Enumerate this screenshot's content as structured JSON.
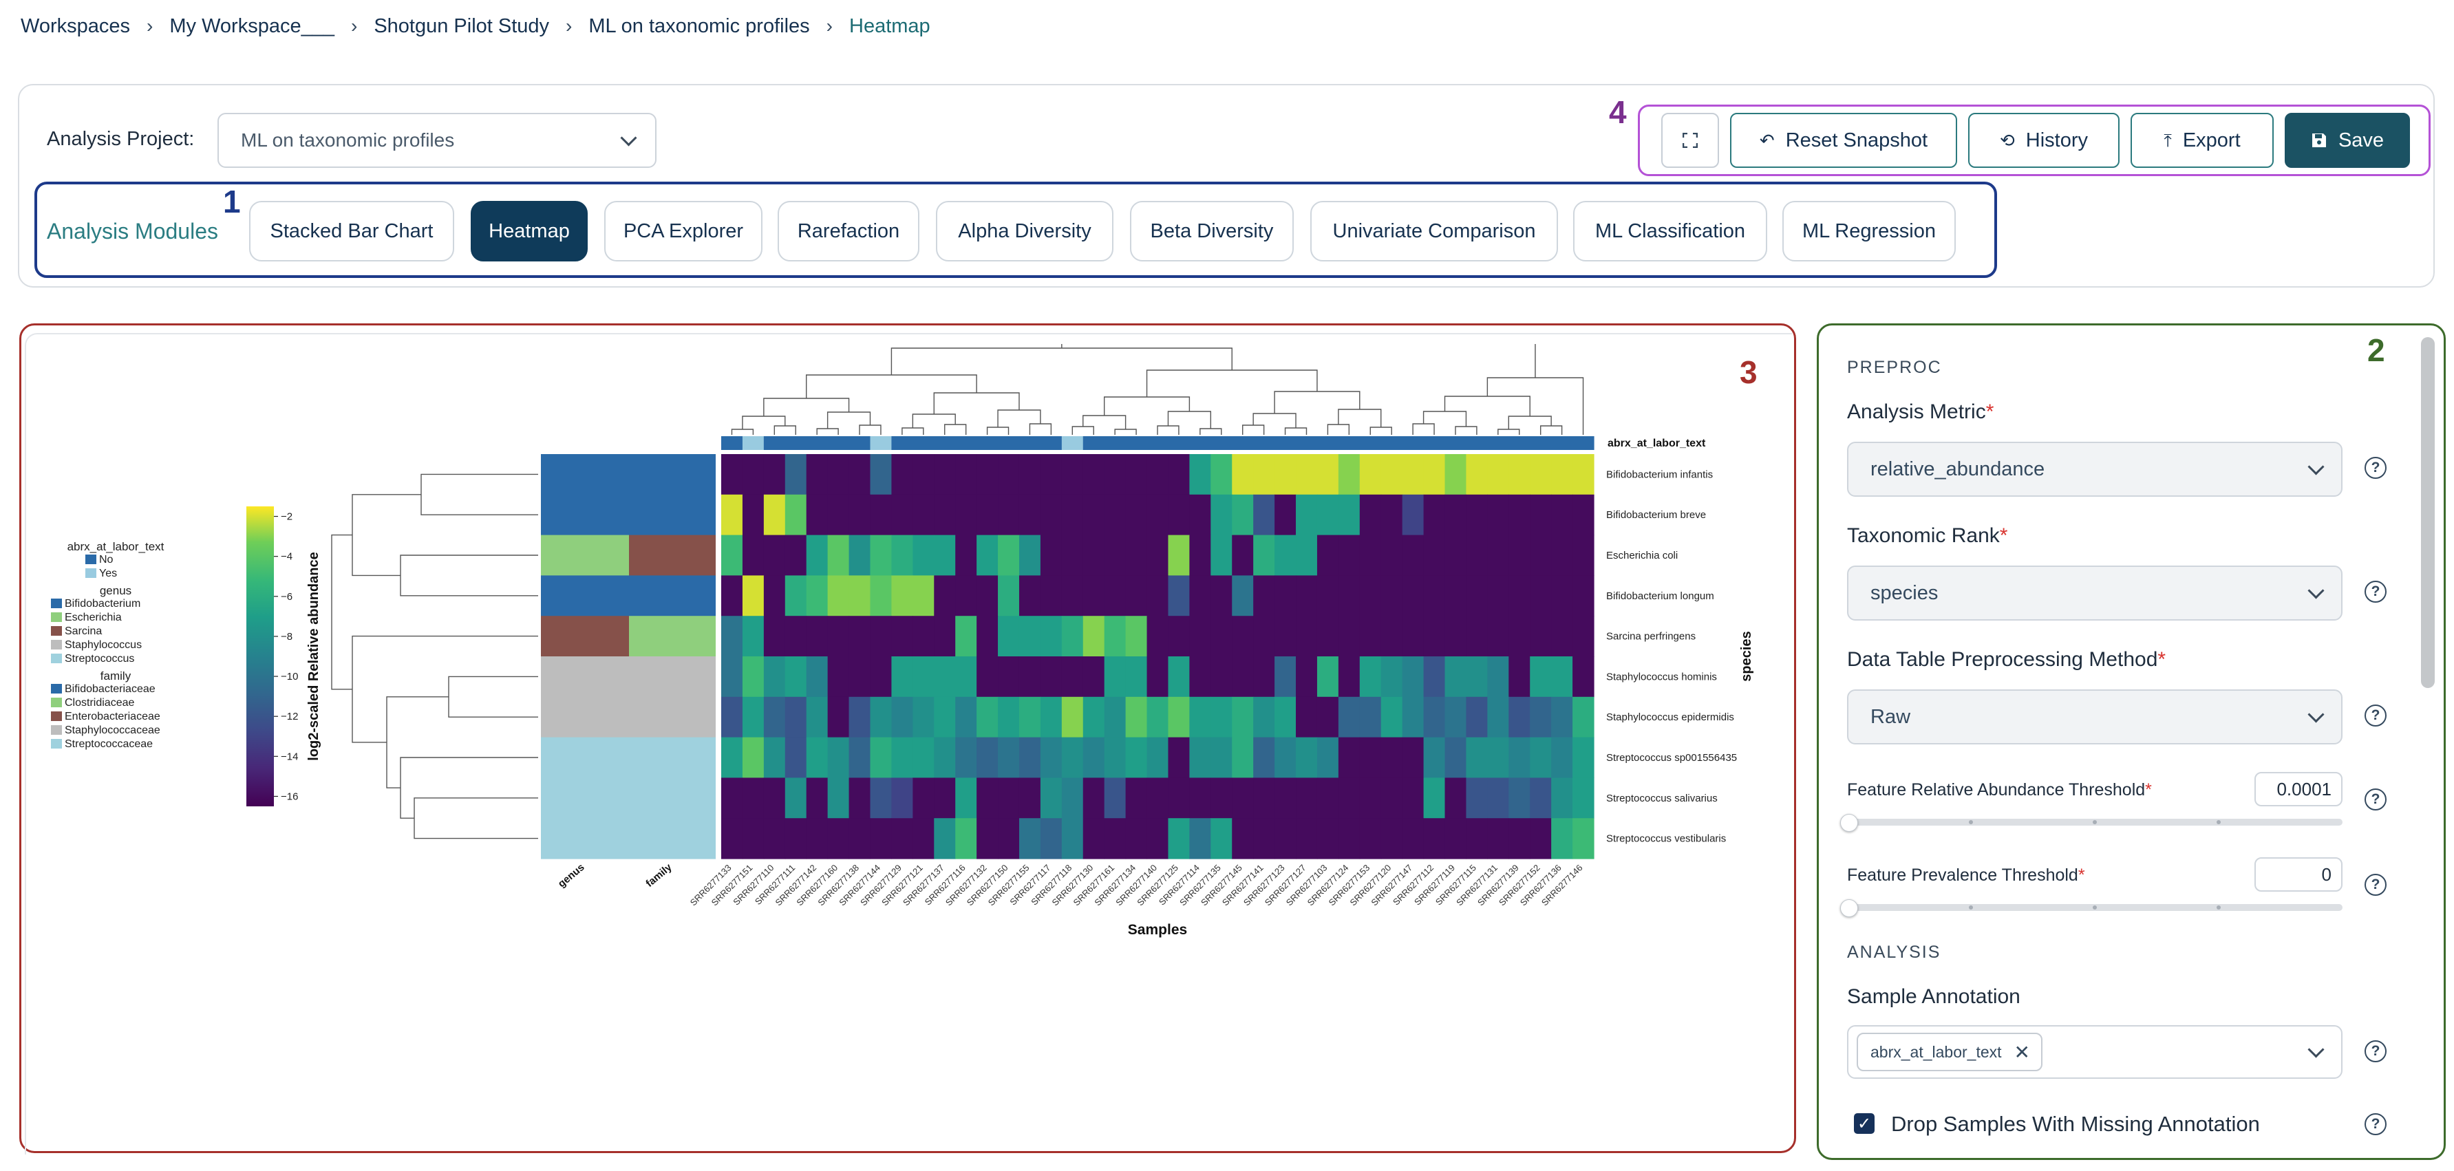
{
  "breadcrumb": [
    "Workspaces",
    "My Workspace___",
    "Shotgun Pilot Study",
    "ML on taxonomic profiles",
    "Heatmap"
  ],
  "project": {
    "label": "Analysis Project:",
    "value": "ML on taxonomic profiles"
  },
  "modules": {
    "label": "Analysis Modules",
    "items": [
      "Stacked Bar Chart",
      "Heatmap",
      "PCA Explorer",
      "Rarefaction",
      "Alpha Diversity",
      "Beta Diversity",
      "Univariate Comparison",
      "ML Classification",
      "ML Regression"
    ],
    "active": "Heatmap"
  },
  "toolbar": {
    "reset": "Reset Snapshot",
    "history": "History",
    "export": "Export",
    "save": "Save"
  },
  "annotations": {
    "modules": "1",
    "settings": "2",
    "plot": "3",
    "toolbar": "4"
  },
  "settings": {
    "preproc_title": "PREPROC",
    "metric_label": "Analysis Metric",
    "metric_value": "relative_abundance",
    "rank_label": "Taxonomic Rank",
    "rank_value": "species",
    "method_label": "Data Table Preprocessing Method",
    "method_value": "Raw",
    "rel_threshold_label": "Feature Relative Abundance Threshold",
    "rel_threshold_value": "0.0001",
    "prev_threshold_label": "Feature Prevalence Threshold",
    "prev_threshold_value": "0",
    "analysis_title": "ANALYSIS",
    "sample_annotation_label": "Sample Annotation",
    "sample_annotation_chip": "abrx_at_labor_text",
    "drop_samples_label": "Drop Samples With Missing Annotation",
    "drop_samples_checked": true
  },
  "chart_data": {
    "type": "heatmap",
    "xlabel": "Samples",
    "ylabel": "species",
    "colorbar_label": "log2-scaled Relative abundance",
    "colorbar_ticks": [
      -2,
      -4,
      -6,
      -8,
      -10,
      -12,
      -14,
      -16
    ],
    "vmin": -16.5,
    "vmax": -1.5,
    "top_annotation_label": "abrx_at_labor_text",
    "row_annotation_labels": [
      "genus",
      "family"
    ],
    "rows": [
      "Bifidobacterium infantis",
      "Bifidobacterium breve",
      "Escherichia coli",
      "Bifidobacterium longum",
      "Sarcina perfringens",
      "Staphylococcus hominis",
      "Staphylococcus epidermidis",
      "Streptococcus sp001556435",
      "Streptococcus salivarius",
      "Streptococcus vestibularis"
    ],
    "columns": [
      "SRR6277133",
      "SRR6277151",
      "SRR6277110",
      "SRR6277111",
      "SRR6277142",
      "SRR6277160",
      "SRR6277138",
      "SRR6277144",
      "SRR6277129",
      "SRR6277121",
      "SRR6277137",
      "SRR6277116",
      "SRR6277132",
      "SRR6277150",
      "SRR6277155",
      "SRR6277117",
      "SRR6277118",
      "SRR6277130",
      "SRR6277161",
      "SRR6277134",
      "SRR6277140",
      "SRR6277125",
      "SRR6277114",
      "SRR6277135",
      "SRR6277145",
      "SRR6277141",
      "SRR6277123",
      "SRR6277127",
      "SRR6277103",
      "SRR6277124",
      "SRR6277153",
      "SRR6277120",
      "SRR6277147",
      "SRR6277112",
      "SRR6277119",
      "SRR6277115",
      "SRR6277131",
      "SRR6277139",
      "SRR6277152",
      "SRR6277136",
      "SRR6277146"
    ],
    "column_annotation": [
      "No",
      "Yes",
      "No",
      "No",
      "No",
      "No",
      "No",
      "Yes",
      "No",
      "No",
      "No",
      "No",
      "No",
      "No",
      "No",
      "No",
      "Yes",
      "No",
      "No",
      "No",
      "No",
      "No",
      "No",
      "No",
      "No",
      "No",
      "No",
      "No",
      "No",
      "No",
      "No",
      "No",
      "No",
      "No",
      "No",
      "No",
      "No",
      "No",
      "No",
      "No",
      "No"
    ],
    "row_genus": [
      "Bifidobacterium",
      "Bifidobacterium",
      "Escherichia",
      "Bifidobacterium",
      "Sarcina",
      "Staphylococcus",
      "Staphylococcus",
      "Streptococcus",
      "Streptococcus",
      "Streptococcus"
    ],
    "row_family": [
      "Bifidobacteriaceae",
      "Bifidobacteriaceae",
      "Enterobacteriaceae",
      "Bifidobacteriaceae",
      "Clostridiaceae",
      "Staphylococcaceae",
      "Staphylococcaceae",
      "Streptococcaceae",
      "Streptococcaceae",
      "Streptococcaceae"
    ],
    "values": [
      [
        -16,
        -16,
        -16,
        -11,
        -16,
        -16,
        -16,
        -11,
        -16,
        -16,
        -16,
        -16,
        -16,
        -16,
        -16,
        -16,
        -16,
        -16,
        -16,
        -16,
        -16,
        -16,
        -7,
        -5,
        -2,
        -2,
        -2,
        -2,
        -2,
        -3,
        -2,
        -2,
        -2,
        -2,
        -3,
        -2,
        -2,
        -2,
        -2,
        -2,
        -2
      ],
      [
        -2,
        -16,
        -2,
        -4,
        -16,
        -16,
        -16,
        -16,
        -16,
        -16,
        -16,
        -16,
        -16,
        -16,
        -16,
        -16,
        -16,
        -16,
        -16,
        -16,
        -16,
        -16,
        -16,
        -7,
        -6,
        -12,
        -16,
        -7,
        -7,
        -7,
        -16,
        -16,
        -13,
        -16,
        -16,
        -16,
        -16,
        -16,
        -16,
        -16,
        -16
      ],
      [
        -5,
        -16,
        -16,
        -16,
        -7,
        -4,
        -8,
        -5,
        -6,
        -7,
        -7,
        -16,
        -7,
        -5,
        -8,
        -16,
        -16,
        -16,
        -16,
        -16,
        -16,
        -3,
        -16,
        -7,
        -16,
        -6,
        -7,
        -7,
        -16,
        -16,
        -16,
        -16,
        -16,
        -16,
        -16,
        -16,
        -16,
        -16,
        -16,
        -16,
        -16
      ],
      [
        -16,
        -2,
        -16,
        -6,
        -5,
        -3,
        -3,
        -4,
        -3,
        -3,
        -16,
        -16,
        -16,
        -6,
        -16,
        -16,
        -16,
        -16,
        -16,
        -16,
        -16,
        -12,
        -16,
        -16,
        -10,
        -16,
        -16,
        -16,
        -16,
        -16,
        -16,
        -16,
        -16,
        -16,
        -16,
        -16,
        -16,
        -16,
        -16,
        -16,
        -16
      ],
      [
        -10,
        -7,
        -16,
        -16,
        -16,
        -16,
        -16,
        -16,
        -16,
        -16,
        -16,
        -5,
        -16,
        -7,
        -7,
        -7,
        -6,
        -3,
        -5,
        -4,
        -16,
        -16,
        -16,
        -16,
        -16,
        -16,
        -16,
        -16,
        -16,
        -16,
        -16,
        -16,
        -16,
        -16,
        -16,
        -16,
        -16,
        -16,
        -16,
        -16,
        -16
      ],
      [
        -10,
        -5,
        -8,
        -7,
        -9,
        -16,
        -16,
        -16,
        -7,
        -7,
        -7,
        -7,
        -16,
        -16,
        -16,
        -16,
        -16,
        -16,
        -7,
        -7,
        -16,
        -7,
        -16,
        -16,
        -16,
        -16,
        -11,
        -16,
        -6,
        -16,
        -7,
        -8,
        -9,
        -12,
        -8,
        -8,
        -9,
        -16,
        -7,
        -7,
        -16
      ],
      [
        -12,
        -7,
        -11,
        -12,
        -8,
        -16,
        -12,
        -8,
        -9,
        -8,
        -7,
        -9,
        -6,
        -7,
        -6,
        -7,
        -3,
        -7,
        -8,
        -4,
        -6,
        -4,
        -7,
        -7,
        -6,
        -8,
        -7,
        -16,
        -16,
        -11,
        -11,
        -7,
        -9,
        -11,
        -10,
        -12,
        -9,
        -12,
        -11,
        -10,
        -6
      ],
      [
        -7,
        -4,
        -8,
        -12,
        -7,
        -8,
        -11,
        -6,
        -7,
        -7,
        -8,
        -10,
        -11,
        -10,
        -11,
        -9,
        -8,
        -9,
        -8,
        -7,
        -8,
        -16,
        -8,
        -8,
        -6,
        -11,
        -9,
        -8,
        -9,
        -16,
        -16,
        -16,
        -16,
        -9,
        -11,
        -8,
        -8,
        -9,
        -8,
        -9,
        -7
      ],
      [
        -16,
        -16,
        -16,
        -8,
        -16,
        -8,
        -16,
        -12,
        -13,
        -16,
        -16,
        -7,
        -16,
        -16,
        -16,
        -8,
        -9,
        -16,
        -12,
        -16,
        -16,
        -16,
        -16,
        -16,
        -16,
        -16,
        -16,
        -16,
        -16,
        -16,
        -16,
        -16,
        -16,
        -7,
        -16,
        -12,
        -12,
        -11,
        -12,
        -8,
        -7
      ],
      [
        -16,
        -16,
        -16,
        -16,
        -16,
        -16,
        -16,
        -16,
        -16,
        -16,
        -8,
        -5,
        -16,
        -16,
        -10,
        -11,
        -9,
        -16,
        -16,
        -16,
        -16,
        -7,
        -10,
        -7,
        -16,
        -16,
        -16,
        -16,
        -16,
        -16,
        -16,
        -16,
        -16,
        -16,
        -16,
        -16,
        -16,
        -16,
        -16,
        -6,
        -5
      ]
    ],
    "legend": {
      "groups": [
        {
          "title": "abrx_at_labor_text",
          "entries": [
            {
              "label": "No",
              "color": "#2a6aa8"
            },
            {
              "label": "Yes",
              "color": "#99cbe0"
            }
          ]
        },
        {
          "title": "genus",
          "entries": [
            {
              "label": "Bifidobacterium",
              "color": "#2a6aa8"
            },
            {
              "label": "Escherichia",
              "color": "#8fcf7d"
            },
            {
              "label": "Sarcina",
              "color": "#86514a"
            },
            {
              "label": "Staphylococcus",
              "color": "#bdbdbd"
            },
            {
              "label": "Streptococcus",
              "color": "#9fd1de"
            }
          ]
        },
        {
          "title": "family",
          "entries": [
            {
              "label": "Bifidobacteriaceae",
              "color": "#2a6aa8"
            },
            {
              "label": "Clostridiaceae",
              "color": "#8fcf7d"
            },
            {
              "label": "Enterobacteriaceae",
              "color": "#86514a"
            },
            {
              "label": "Staphylococcaceae",
              "color": "#bdbdbd"
            },
            {
              "label": "Streptococcaceae",
              "color": "#9fd1de"
            }
          ]
        }
      ]
    }
  }
}
